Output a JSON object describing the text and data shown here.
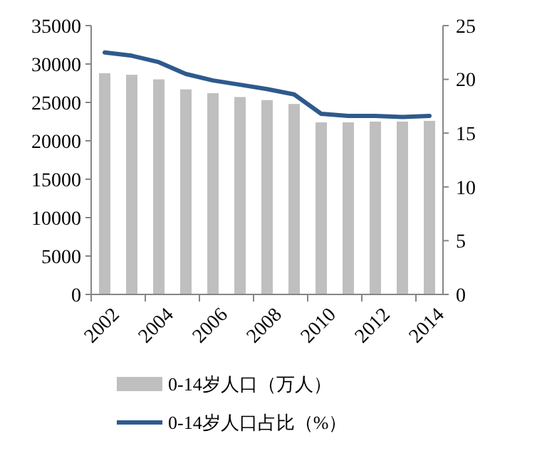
{
  "chart_data": {
    "type": "bar",
    "categories": [
      "2002",
      null,
      "2004",
      null,
      "2006",
      null,
      "2008",
      null,
      "2010",
      null,
      "2012",
      null,
      "2014"
    ],
    "series": [
      {
        "name": "0-14岁人口（万人）",
        "color": "#bfbfbf",
        "values": [
          28800,
          28600,
          28000,
          26700,
          26200,
          25700,
          25300,
          24800,
          22400,
          22400,
          22500,
          22500,
          22600
        ]
      },
      {
        "name": "0-14岁人口占比（%）",
        "color": "#2e5a8c",
        "type": "line",
        "axis": "y2",
        "values": [
          22.5,
          22.2,
          21.6,
          20.5,
          19.9,
          19.5,
          19.1,
          18.6,
          16.8,
          16.6,
          16.6,
          16.5,
          16.6
        ]
      }
    ],
    "ylim": [
      0,
      35000
    ],
    "yticks": [
      0,
      5000,
      10000,
      15000,
      20000,
      25000,
      30000,
      35000
    ],
    "y2lim": [
      0,
      25
    ],
    "y2ticks": [
      0,
      5,
      10,
      15,
      20,
      25
    ],
    "legend": "bottom",
    "marker": "none",
    "grid": false
  }
}
